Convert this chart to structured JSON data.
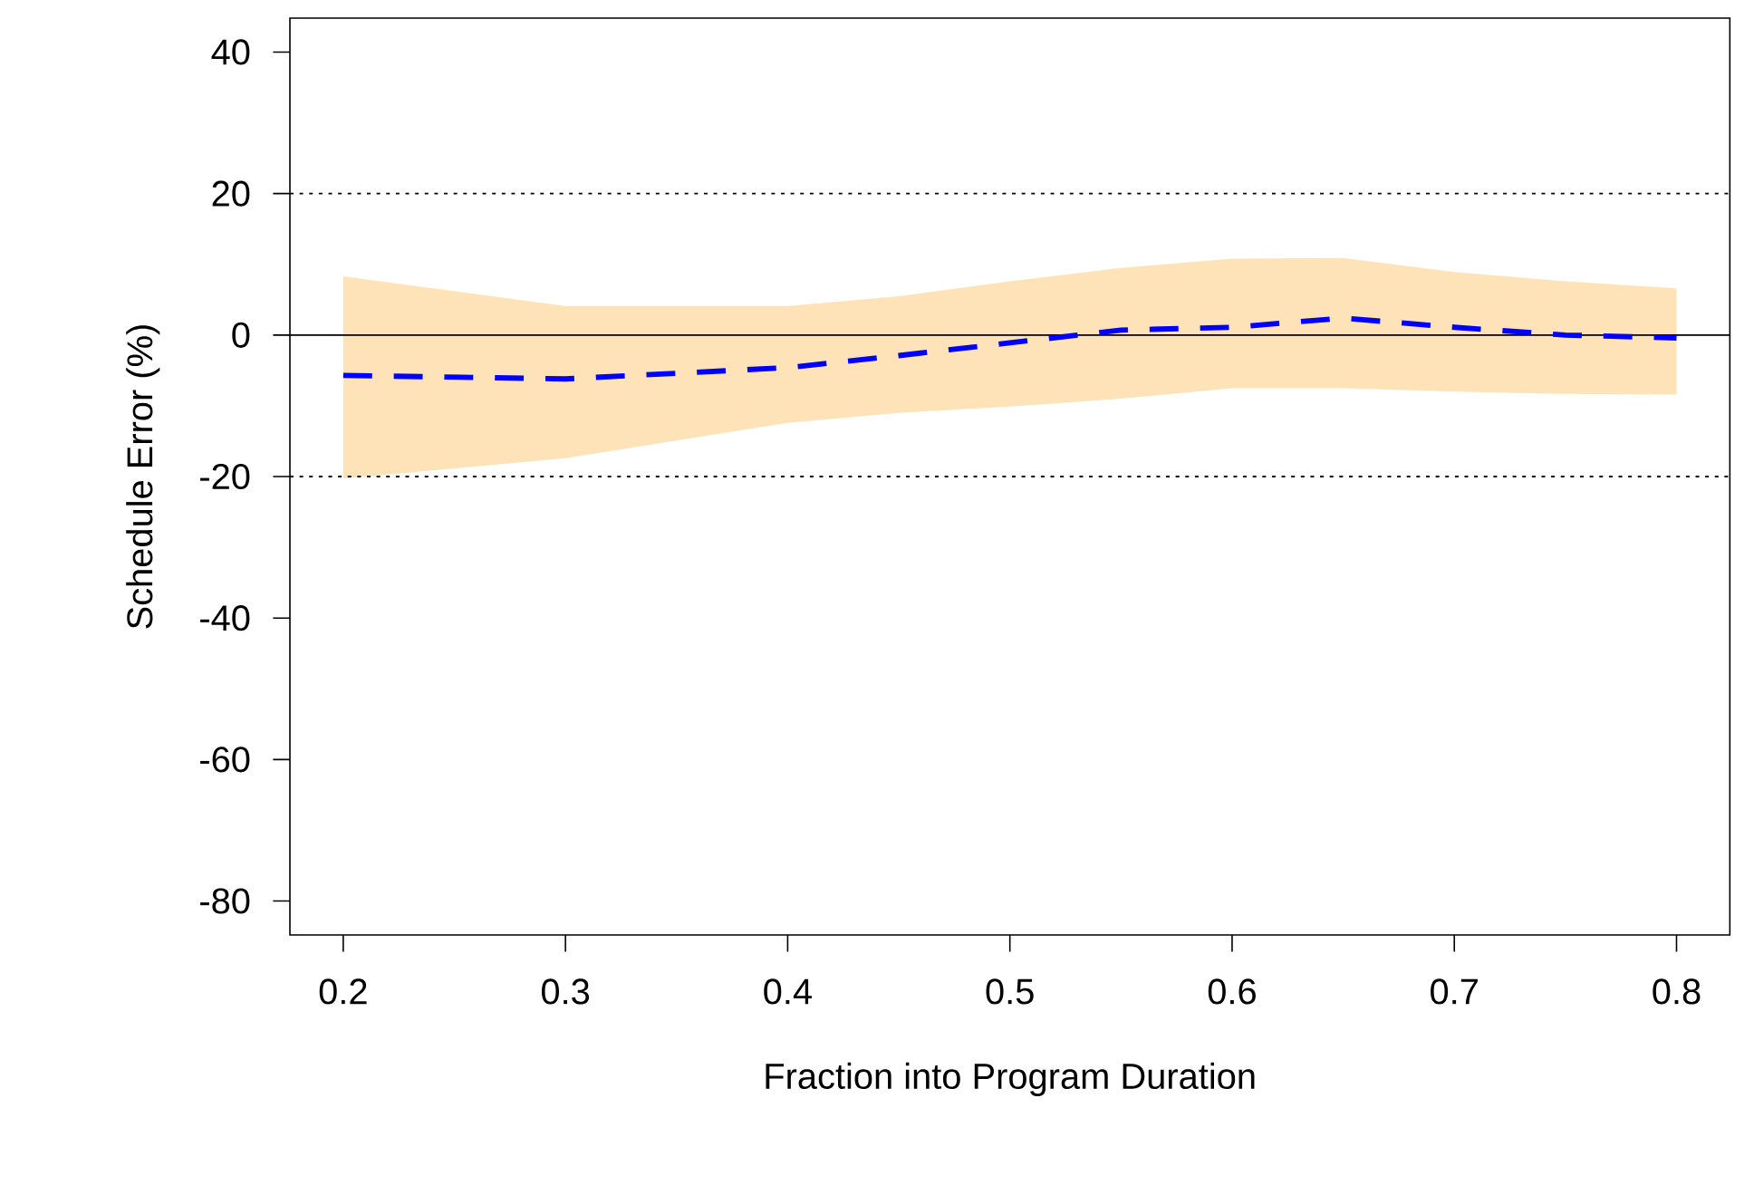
{
  "chart_data": {
    "type": "line",
    "xlabel": "Fraction into Program Duration",
    "ylabel": "Schedule Error (%)",
    "xlim": [
      0.176,
      0.824
    ],
    "ylim": [
      -84.8,
      44.8
    ],
    "xticks": [
      0.2,
      0.3,
      0.4,
      0.5,
      0.6,
      0.7,
      0.8
    ],
    "yticks": [
      -80,
      -60,
      -40,
      -20,
      0,
      20,
      40
    ],
    "series": [
      {
        "color": "#0000ff",
        "line_style": "dashed",
        "x": [
          0.2,
          0.3,
          0.4,
          0.45,
          0.5,
          0.55,
          0.6,
          0.65,
          0.7,
          0.75,
          0.8
        ],
        "values": [
          -5.7,
          -6.2,
          -4.6,
          -2.9,
          -1.1,
          0.7,
          1.1,
          2.4,
          1.1,
          0,
          -0.4
        ],
        "lower": [
          -20.3,
          -17.4,
          -12.4,
          -11,
          -10.1,
          -9,
          -7.5,
          -7.5,
          -8,
          -8.3,
          -8.4
        ],
        "upper": [
          8.3,
          4.1,
          4.1,
          5.5,
          7.6,
          9.5,
          10.8,
          10.9,
          8.9,
          7.6,
          6.6
        ]
      }
    ],
    "ref_lines": [
      {
        "axis": "y",
        "value": 0,
        "color": "#000000",
        "line_style": "solid"
      },
      {
        "axis": "y",
        "value": 20,
        "color": "#000000",
        "line_style": "dotted"
      },
      {
        "axis": "y",
        "value": -20,
        "color": "#000000",
        "line_style": "dotted"
      }
    ]
  }
}
